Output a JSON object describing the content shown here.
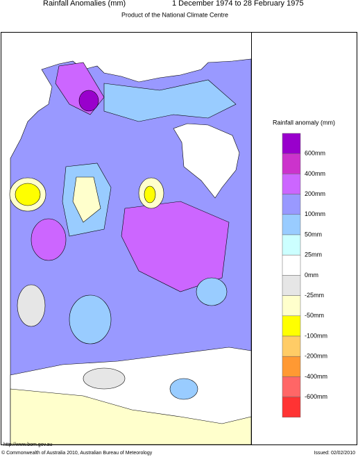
{
  "header": {
    "title": "Rainfall Anomalies (mm)",
    "period": "1 December 1974 to 28 February 1975",
    "subtitle": "Product of the National Climate Centre"
  },
  "legend": {
    "title": "Rainfall anomaly (mm)",
    "colors": [
      "#9900cc",
      "#cc33cc",
      "#cc66ff",
      "#9999ff",
      "#99ccff",
      "#ccffff",
      "#ffffff",
      "#e6e6e6",
      "#ffffcc",
      "#ffff00",
      "#ffcc66",
      "#ff9933",
      "#ff6666",
      "#ff3333"
    ],
    "labels": [
      "600mm",
      "400mm",
      "200mm",
      "100mm",
      "50mm",
      "25mm",
      "0mm",
      "-25mm",
      "-50mm",
      "-100mm",
      "-200mm",
      "-400mm",
      "-600mm"
    ]
  },
  "footer": {
    "url": "http://www.bom.gov.au",
    "copyright": "© Commonwealth of Australia 2010, Australian Bureau of Meteorology",
    "issued": "Issued: 02/02/2010"
  }
}
